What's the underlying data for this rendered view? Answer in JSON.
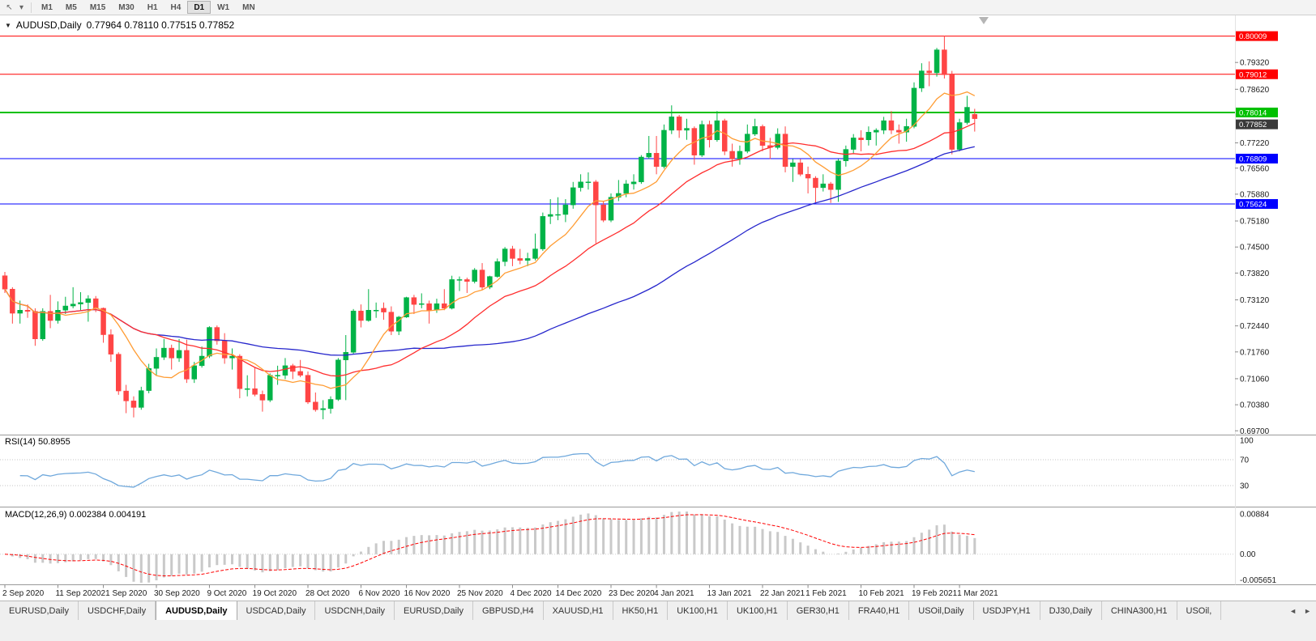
{
  "toolbar": {
    "timeframes": [
      "M1",
      "M5",
      "M15",
      "M30",
      "H1",
      "H4",
      "D1",
      "W1",
      "MN"
    ],
    "active": "D1"
  },
  "icons": {
    "collapse": "▼",
    "cursor": "↖",
    "caret": "▾",
    "tab_prev": "◄",
    "tab_next": "►"
  },
  "chart": {
    "symbol_title": "AUDUSD,Daily",
    "ohlc_text": "0.77964 0.78110 0.77515 0.77852"
  },
  "indicators": {
    "rsi_label": "RSI(14) 50.8955",
    "macd_label": "MACD(12,26,9) 0.002384 0.004191"
  },
  "tabs": {
    "items": [
      "EURUSD,Daily",
      "USDCHF,Daily",
      "AUDUSD,Daily",
      "USDCAD,Daily",
      "USDCNH,Daily",
      "EURUSD,Daily",
      "GBPUSD,H4",
      "XAUUSD,H1",
      "HK50,H1",
      "UK100,H1",
      "UK100,H1",
      "GER30,H1",
      "FRA40,H1",
      "USOil,Daily",
      "USDJPY,H1",
      "DJ30,Daily",
      "CHINA300,H1",
      "USOil,"
    ],
    "active_index": 2
  },
  "colors": {
    "bull": "#00b347",
    "bear": "#ff4545",
    "ma_fast": "#ff9c33",
    "ma_mid": "#ff2e2e",
    "ma_slow": "#2626cc",
    "rsi_line": "#6fa8dc",
    "macd_hist": "#c9c9c9",
    "macd_signal": "#ff0000",
    "level_red": "#ff0000",
    "level_green": "#00c000",
    "level_blue": "#0000ff",
    "bid_label_bg": "#3a3a3a"
  },
  "chart_data": {
    "type": "candlestick",
    "symbol": "AUDUSD",
    "timeframe": "Daily",
    "current_ohlc": {
      "open": 0.77964,
      "high": 0.7811,
      "low": 0.77515,
      "close": 0.77852
    },
    "price_axis_labels": [
      "0.79320",
      "0.78620",
      "0.77220",
      "0.76560",
      "0.75880",
      "0.75180",
      "0.74500",
      "0.73820",
      "0.73120",
      "0.72440",
      "0.71760",
      "0.71060",
      "0.70380",
      "0.69700"
    ],
    "time_axis_labels": [
      {
        "label": "2 Sep 2020",
        "index": 0
      },
      {
        "label": "11 Sep 2020",
        "index": 7
      },
      {
        "label": "21 Sep 2020",
        "index": 13
      },
      {
        "label": "30 Sep 2020",
        "index": 20
      },
      {
        "label": "9 Oct 2020",
        "index": 27
      },
      {
        "label": "19 Oct 2020",
        "index": 33
      },
      {
        "label": "28 Oct 2020",
        "index": 40
      },
      {
        "label": "6 Nov 2020",
        "index": 47
      },
      {
        "label": "16 Nov 2020",
        "index": 53
      },
      {
        "label": "25 Nov 2020",
        "index": 60
      },
      {
        "label": "4 Dec 2020",
        "index": 67
      },
      {
        "label": "14 Dec 2020",
        "index": 73
      },
      {
        "label": "23 Dec 2020",
        "index": 80
      },
      {
        "label": "4 Jan 2021",
        "index": 86
      },
      {
        "label": "13 Jan 2021",
        "index": 93
      },
      {
        "label": "22 Jan 2021",
        "index": 100
      },
      {
        "label": "1 Feb 2021",
        "index": 106
      },
      {
        "label": "10 Feb 2021",
        "index": 113
      },
      {
        "label": "19 Feb 2021",
        "index": 120
      },
      {
        "label": "1 Mar 2021",
        "index": 126
      }
    ],
    "hlines": [
      {
        "label": "0.80009",
        "value": 0.80009,
        "color": "#ff0000",
        "width": 1
      },
      {
        "label": "0.79012",
        "value": 0.79012,
        "color": "#ff0000",
        "width": 1
      },
      {
        "label": "0.78014",
        "value": 0.78014,
        "color": "#00c000",
        "width": 2
      },
      {
        "label": "0.77852",
        "value": 0.77852,
        "color": "#3a3a3a",
        "width": 1,
        "line": false,
        "label_offset": 7
      },
      {
        "label": "0.76809",
        "value": 0.76809,
        "color": "#0000ff",
        "width": 1
      },
      {
        "label": "0.75624",
        "value": 0.75624,
        "color": "#0000ff",
        "width": 1
      }
    ],
    "moving_averages": [
      {
        "period": 55,
        "color": "#2626cc"
      },
      {
        "period": 21,
        "color": "#ff2e2e"
      },
      {
        "period": 8,
        "color": "#ff9c33"
      }
    ],
    "rsi": {
      "period": 14,
      "current": "50.8955",
      "axis_labels": [
        "100",
        "70",
        "30"
      ],
      "levels": [
        100,
        70,
        30
      ]
    },
    "macd": {
      "params": "12,26,9",
      "current": [
        0.002384,
        0.004191
      ],
      "axis_labels": [
        "0.00884",
        "0.00",
        "-0.005651"
      ]
    },
    "candles": [
      [
        0.7375,
        0.7385,
        0.733,
        0.734
      ],
      [
        0.734,
        0.7345,
        0.725,
        0.7277
      ],
      [
        0.7277,
        0.731,
        0.725,
        0.7285
      ],
      [
        0.7285,
        0.73,
        0.7265,
        0.7282
      ],
      [
        0.7282,
        0.729,
        0.7192,
        0.721
      ],
      [
        0.721,
        0.729,
        0.7205,
        0.7282
      ],
      [
        0.7282,
        0.7325,
        0.7238,
        0.7258
      ],
      [
        0.7258,
        0.7308,
        0.725,
        0.7285
      ],
      [
        0.7285,
        0.732,
        0.7275,
        0.7296
      ],
      [
        0.7296,
        0.7345,
        0.729,
        0.7301
      ],
      [
        0.7301,
        0.7332,
        0.7285,
        0.7305
      ],
      [
        0.7305,
        0.7324,
        0.7255,
        0.7315
      ],
      [
        0.7315,
        0.7322,
        0.728,
        0.729
      ],
      [
        0.729,
        0.7292,
        0.72,
        0.7221
      ],
      [
        0.7221,
        0.7235,
        0.715,
        0.717
      ],
      [
        0.717,
        0.7175,
        0.7064,
        0.7074
      ],
      [
        0.7074,
        0.709,
        0.7016,
        0.7048
      ],
      [
        0.7048,
        0.706,
        0.7005,
        0.7031
      ],
      [
        0.7031,
        0.7085,
        0.7025,
        0.7075
      ],
      [
        0.7075,
        0.7145,
        0.7068,
        0.7133
      ],
      [
        0.7133,
        0.7185,
        0.7115,
        0.7162
      ],
      [
        0.7162,
        0.721,
        0.7155,
        0.7186
      ],
      [
        0.7186,
        0.7195,
        0.713,
        0.716
      ],
      [
        0.716,
        0.721,
        0.715,
        0.718
      ],
      [
        0.718,
        0.7208,
        0.7095,
        0.7105
      ],
      [
        0.7105,
        0.715,
        0.7095,
        0.714
      ],
      [
        0.714,
        0.719,
        0.7135,
        0.7165
      ],
      [
        0.7165,
        0.7243,
        0.716,
        0.724
      ],
      [
        0.724,
        0.7245,
        0.7195,
        0.7205
      ],
      [
        0.7205,
        0.7225,
        0.7145,
        0.716
      ],
      [
        0.716,
        0.7185,
        0.713,
        0.7165
      ],
      [
        0.7165,
        0.717,
        0.7055,
        0.708
      ],
      [
        0.708,
        0.7115,
        0.706,
        0.708
      ],
      [
        0.708,
        0.7135,
        0.706,
        0.7065
      ],
      [
        0.7065,
        0.7075,
        0.702,
        0.705
      ],
      [
        0.705,
        0.712,
        0.7045,
        0.7115
      ],
      [
        0.7115,
        0.714,
        0.709,
        0.7115
      ],
      [
        0.7115,
        0.716,
        0.7105,
        0.714
      ],
      [
        0.714,
        0.7145,
        0.7105,
        0.7125
      ],
      [
        0.7125,
        0.7155,
        0.711,
        0.7115
      ],
      [
        0.7115,
        0.7125,
        0.704,
        0.7045
      ],
      [
        0.7045,
        0.707,
        0.702,
        0.7025
      ],
      [
        0.7025,
        0.705,
        0.7,
        0.7028
      ],
      [
        0.7028,
        0.706,
        0.7015,
        0.7052
      ],
      [
        0.7052,
        0.716,
        0.7048,
        0.7155
      ],
      [
        0.7155,
        0.722,
        0.705,
        0.7175
      ],
      [
        0.7175,
        0.7288,
        0.717,
        0.7283
      ],
      [
        0.7283,
        0.73,
        0.724,
        0.7258
      ],
      [
        0.7258,
        0.734,
        0.7255,
        0.7285
      ],
      [
        0.7285,
        0.7305,
        0.7265,
        0.7285
      ],
      [
        0.729,
        0.7305,
        0.726,
        0.728
      ],
      [
        0.728,
        0.7295,
        0.722,
        0.723
      ],
      [
        0.723,
        0.727,
        0.722,
        0.7267
      ],
      [
        0.7267,
        0.732,
        0.7265,
        0.7318
      ],
      [
        0.7318,
        0.7325,
        0.7275,
        0.73
      ],
      [
        0.73,
        0.7329,
        0.729,
        0.7302
      ],
      [
        0.7302,
        0.731,
        0.725,
        0.7285
      ],
      [
        0.7285,
        0.7315,
        0.7278,
        0.7302
      ],
      [
        0.7302,
        0.734,
        0.7285,
        0.729
      ],
      [
        0.729,
        0.7375,
        0.7287,
        0.7365
      ],
      [
        0.7365,
        0.7373,
        0.7335,
        0.7365
      ],
      [
        0.7365,
        0.737,
        0.733,
        0.736
      ],
      [
        0.736,
        0.7395,
        0.7355,
        0.739
      ],
      [
        0.739,
        0.7408,
        0.7338,
        0.7345
      ],
      [
        0.7345,
        0.7375,
        0.734,
        0.7373
      ],
      [
        0.7373,
        0.742,
        0.737,
        0.7412
      ],
      [
        0.7412,
        0.745,
        0.74,
        0.7445
      ],
      [
        0.7445,
        0.7453,
        0.74,
        0.742
      ],
      [
        0.742,
        0.7445,
        0.7405,
        0.7415
      ],
      [
        0.7415,
        0.7435,
        0.74,
        0.742
      ],
      [
        0.742,
        0.7485,
        0.7415,
        0.7445
      ],
      [
        0.7445,
        0.754,
        0.744,
        0.753
      ],
      [
        0.753,
        0.7575,
        0.751,
        0.7535
      ],
      [
        0.7535,
        0.758,
        0.752,
        0.7535
      ],
      [
        0.7535,
        0.7575,
        0.7515,
        0.756
      ],
      [
        0.756,
        0.762,
        0.755,
        0.7605
      ],
      [
        0.7605,
        0.764,
        0.7595,
        0.762
      ],
      [
        0.762,
        0.7645,
        0.76,
        0.762
      ],
      [
        0.762,
        0.7625,
        0.746,
        0.756
      ],
      [
        0.756,
        0.757,
        0.7515,
        0.752
      ],
      [
        0.752,
        0.759,
        0.7515,
        0.758
      ],
      [
        0.758,
        0.7625,
        0.757,
        0.759
      ],
      [
        0.759,
        0.7625,
        0.758,
        0.7615
      ],
      [
        0.7615,
        0.764,
        0.76,
        0.762
      ],
      [
        0.762,
        0.769,
        0.7615,
        0.7685
      ],
      [
        0.7685,
        0.774,
        0.768,
        0.7695
      ],
      [
        0.7695,
        0.774,
        0.764,
        0.766
      ],
      [
        0.766,
        0.777,
        0.7655,
        0.7755
      ],
      [
        0.7755,
        0.782,
        0.7745,
        0.779
      ],
      [
        0.779,
        0.7795,
        0.7735,
        0.7755
      ],
      [
        0.7755,
        0.7785,
        0.773,
        0.776
      ],
      [
        0.776,
        0.7765,
        0.7665,
        0.769
      ],
      [
        0.769,
        0.778,
        0.7685,
        0.777
      ],
      [
        0.777,
        0.778,
        0.771,
        0.773
      ],
      [
        0.773,
        0.7805,
        0.7725,
        0.778
      ],
      [
        0.778,
        0.7785,
        0.769,
        0.77
      ],
      [
        0.77,
        0.772,
        0.766,
        0.768
      ],
      [
        0.768,
        0.7715,
        0.7665,
        0.77
      ],
      [
        0.77,
        0.777,
        0.7695,
        0.7745
      ],
      [
        0.7745,
        0.7785,
        0.774,
        0.7765
      ],
      [
        0.7765,
        0.777,
        0.77,
        0.7715
      ],
      [
        0.7715,
        0.7735,
        0.768,
        0.771
      ],
      [
        0.771,
        0.776,
        0.7705,
        0.7745
      ],
      [
        0.7745,
        0.7765,
        0.7645,
        0.766
      ],
      [
        0.766,
        0.768,
        0.762,
        0.767
      ],
      [
        0.767,
        0.768,
        0.7635,
        0.764
      ],
      [
        0.764,
        0.766,
        0.759,
        0.763
      ],
      [
        0.763,
        0.7635,
        0.7566,
        0.7605
      ],
      [
        0.7605,
        0.764,
        0.7595,
        0.7615
      ],
      [
        0.7615,
        0.762,
        0.7565,
        0.76
      ],
      [
        0.76,
        0.768,
        0.7568,
        0.7675
      ],
      [
        0.7675,
        0.7715,
        0.766,
        0.7705
      ],
      [
        0.7705,
        0.7745,
        0.7695,
        0.7735
      ],
      [
        0.7735,
        0.7755,
        0.77,
        0.773
      ],
      [
        0.773,
        0.7765,
        0.7715,
        0.775
      ],
      [
        0.775,
        0.776,
        0.7715,
        0.7755
      ],
      [
        0.7755,
        0.779,
        0.7745,
        0.778
      ],
      [
        0.778,
        0.7805,
        0.7745,
        0.7755
      ],
      [
        0.7755,
        0.777,
        0.772,
        0.775
      ],
      [
        0.775,
        0.7785,
        0.7725,
        0.7765
      ],
      [
        0.7765,
        0.788,
        0.776,
        0.7865
      ],
      [
        0.7865,
        0.793,
        0.7855,
        0.791
      ],
      [
        0.791,
        0.7935,
        0.787,
        0.7905
      ],
      [
        0.7905,
        0.797,
        0.7895,
        0.7965
      ],
      [
        0.7965,
        0.8001,
        0.789,
        0.79
      ],
      [
        0.79,
        0.791,
        0.7692,
        0.7705
      ],
      [
        0.7705,
        0.7785,
        0.77,
        0.7775
      ],
      [
        0.7775,
        0.7845,
        0.777,
        0.7815
      ],
      [
        0.77964,
        0.7811,
        0.77515,
        0.77852
      ]
    ]
  }
}
